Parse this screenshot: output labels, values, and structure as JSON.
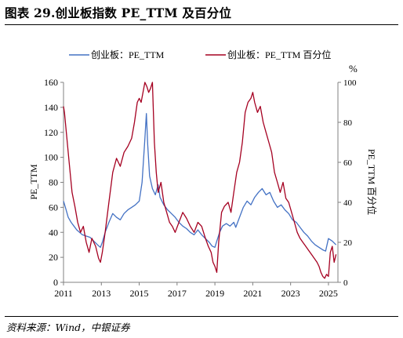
{
  "title": "图表 29.创业板指数 PE_TTM 及百分位",
  "source": "资料来源：Wind，中银证券",
  "colors": {
    "pe": "#4472C4",
    "pct": "#A50021",
    "axis": "#808080"
  },
  "chart_data": {
    "type": "line",
    "xlabel": "",
    "ylabel": "PE_TTM",
    "y2label": "PE_TTM 百分位",
    "y2unit": "%",
    "xlim": [
      2011,
      2025.5
    ],
    "ylim": [
      0,
      160
    ],
    "y2lim": [
      0,
      100
    ],
    "x_ticks": [
      2011,
      2013,
      2015,
      2017,
      2019,
      2021,
      2023,
      2025
    ],
    "y_ticks": [
      0,
      20,
      40,
      60,
      80,
      100,
      120,
      140,
      160
    ],
    "y2_ticks": [
      0,
      20,
      40,
      60,
      80,
      100
    ],
    "legend_position": "top",
    "series": [
      {
        "name": "创业板：PE_TTM",
        "axis": "left",
        "x": [
          2011.0,
          2011.1,
          2011.25,
          2011.4,
          2011.55,
          2011.7,
          2011.85,
          2012.0,
          2012.2,
          2012.4,
          2012.6,
          2012.8,
          2012.95,
          2013.05,
          2013.2,
          2013.4,
          2013.6,
          2013.8,
          2014.0,
          2014.2,
          2014.4,
          2014.6,
          2014.8,
          2015.0,
          2015.15,
          2015.3,
          2015.38,
          2015.45,
          2015.55,
          2015.7,
          2015.85,
          2016.0,
          2016.1,
          2016.3,
          2016.5,
          2016.7,
          2016.9,
          2017.1,
          2017.3,
          2017.5,
          2017.7,
          2017.9,
          2018.1,
          2018.3,
          2018.5,
          2018.7,
          2018.85,
          2019.0,
          2019.1,
          2019.25,
          2019.4,
          2019.6,
          2019.8,
          2020.0,
          2020.1,
          2020.3,
          2020.5,
          2020.7,
          2020.9,
          2021.1,
          2021.3,
          2021.5,
          2021.7,
          2021.9,
          2022.1,
          2022.3,
          2022.5,
          2022.7,
          2022.9,
          2023.1,
          2023.3,
          2023.5,
          2023.7,
          2023.9,
          2024.1,
          2024.3,
          2024.5,
          2024.7,
          2024.85,
          2025.0,
          2025.2,
          2025.4
        ],
        "values": [
          65,
          60,
          52,
          48,
          45,
          42,
          40,
          38,
          37,
          36,
          33,
          30,
          28,
          32,
          40,
          48,
          55,
          52,
          50,
          55,
          58,
          60,
          62,
          65,
          80,
          115,
          135,
          110,
          85,
          75,
          70,
          78,
          68,
          62,
          58,
          55,
          52,
          48,
          45,
          43,
          40,
          38,
          42,
          38,
          35,
          32,
          29,
          28,
          33,
          40,
          45,
          47,
          45,
          48,
          44,
          52,
          60,
          65,
          62,
          68,
          72,
          75,
          70,
          72,
          65,
          60,
          62,
          58,
          55,
          50,
          48,
          44,
          40,
          37,
          33,
          30,
          28,
          26,
          25,
          35,
          33,
          30
        ]
      },
      {
        "name": "创业板：PE_TTM 百分位",
        "axis": "right",
        "x": [
          2011.0,
          2011.05,
          2011.15,
          2011.3,
          2011.45,
          2011.6,
          2011.75,
          2011.9,
          2012.05,
          2012.2,
          2012.35,
          2012.5,
          2012.7,
          2012.85,
          2012.95,
          2013.05,
          2013.2,
          2013.4,
          2013.6,
          2013.8,
          2014.0,
          2014.2,
          2014.4,
          2014.6,
          2014.75,
          2014.9,
          2015.0,
          2015.1,
          2015.2,
          2015.3,
          2015.4,
          2015.5,
          2015.6,
          2015.7,
          2015.8,
          2015.9,
          2016.0,
          2016.15,
          2016.3,
          2016.45,
          2016.6,
          2016.75,
          2016.9,
          2017.1,
          2017.3,
          2017.5,
          2017.7,
          2017.9,
          2018.1,
          2018.3,
          2018.5,
          2018.65,
          2018.8,
          2018.9,
          2019.0,
          2019.1,
          2019.2,
          2019.35,
          2019.5,
          2019.7,
          2019.85,
          2020.0,
          2020.15,
          2020.3,
          2020.45,
          2020.6,
          2020.75,
          2020.9,
          2021.0,
          2021.1,
          2021.25,
          2021.4,
          2021.55,
          2021.7,
          2021.85,
          2022.0,
          2022.15,
          2022.3,
          2022.45,
          2022.6,
          2022.75,
          2022.9,
          2023.05,
          2023.2,
          2023.35,
          2023.5,
          2023.65,
          2023.8,
          2023.95,
          2024.1,
          2024.25,
          2024.4,
          2024.5,
          2024.6,
          2024.7,
          2024.8,
          2024.9,
          2025.0,
          2025.1,
          2025.2,
          2025.3,
          2025.4
        ],
        "values": [
          88,
          85,
          75,
          60,
          45,
          38,
          30,
          25,
          28,
          20,
          15,
          22,
          18,
          12,
          10,
          15,
          25,
          40,
          55,
          62,
          58,
          65,
          68,
          72,
          80,
          90,
          92,
          90,
          95,
          100,
          98,
          95,
          97,
          100,
          70,
          55,
          45,
          50,
          40,
          35,
          30,
          28,
          25,
          30,
          35,
          32,
          28,
          25,
          30,
          28,
          22,
          18,
          15,
          10,
          8,
          5,
          20,
          35,
          38,
          40,
          35,
          45,
          55,
          60,
          70,
          85,
          90,
          92,
          95,
          90,
          85,
          88,
          80,
          75,
          70,
          65,
          55,
          50,
          45,
          50,
          42,
          40,
          35,
          30,
          25,
          22,
          20,
          18,
          16,
          14,
          12,
          10,
          8,
          5,
          3,
          2,
          4,
          3,
          15,
          18,
          10,
          14
        ]
      }
    ]
  }
}
